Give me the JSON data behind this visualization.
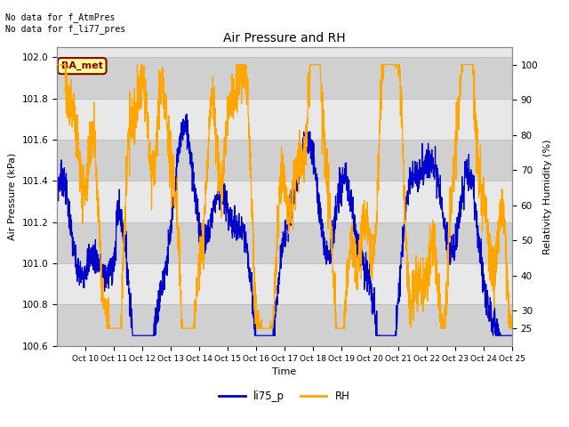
{
  "title": "Air Pressure and RH",
  "xlabel": "Time",
  "ylabel_left": "Air Pressure (kPa)",
  "ylabel_right": "Relativity Humidity (%)",
  "annotation_text": "No data for f_AtmPres\nNo data for f_li77_pres",
  "legend_label1": "li75_p",
  "legend_label2": "RH",
  "legend_color1": "#0000cc",
  "legend_color2": "#ffa500",
  "ba_met_label": "BA_met",
  "ba_met_bg": "#ffff99",
  "ba_met_border": "#8b0000",
  "ba_met_text": "#8b0000",
  "ylim_left": [
    100.6,
    102.05
  ],
  "ylim_right": [
    20,
    105
  ],
  "yticks_left": [
    100.6,
    100.8,
    101.0,
    101.2,
    101.4,
    101.6,
    101.8,
    102.0
  ],
  "yticks_right": [
    25,
    30,
    40,
    50,
    60,
    70,
    80,
    90,
    100
  ],
  "grid_color": "#bbbbbb",
  "plot_bg": "#e8e8e8",
  "band_light": "#d0d0d0",
  "band_dark": "#e8e8e8"
}
